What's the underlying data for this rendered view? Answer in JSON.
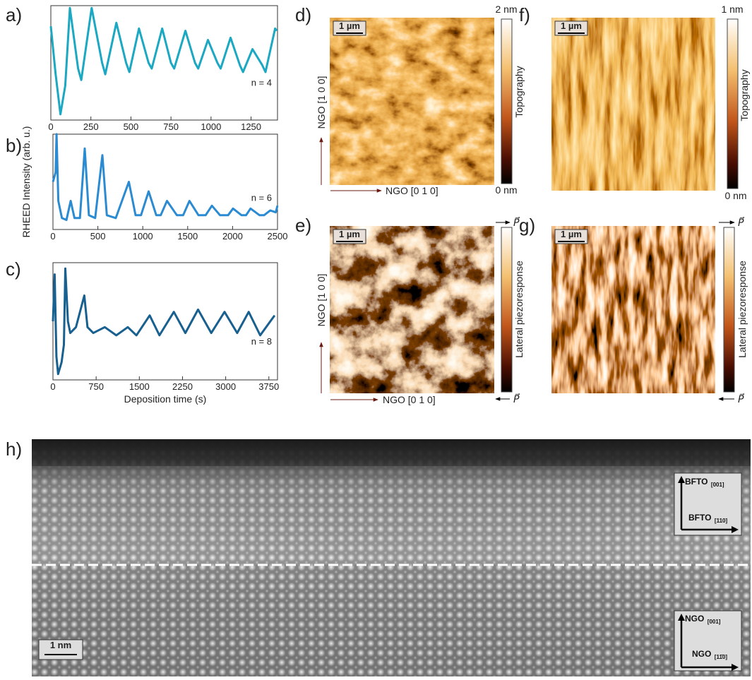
{
  "chart_data": [
    {
      "type": "line",
      "panel_label": "a)",
      "annotation": "n = 4",
      "x": [
        0,
        30,
        60,
        90,
        119,
        170,
        190,
        255,
        320,
        340,
        409,
        470,
        490,
        550,
        610,
        630,
        695,
        750,
        770,
        840,
        900,
        920,
        981,
        1040,
        1060,
        1122,
        1180,
        1200,
        1259,
        1320,
        1340,
        1400,
        1410
      ],
      "values": [
        0.82,
        0.4,
        0.05,
        0.3,
        0.98,
        0.45,
        0.35,
        0.98,
        0.5,
        0.4,
        0.85,
        0.5,
        0.42,
        0.8,
        0.5,
        0.45,
        0.8,
        0.5,
        0.45,
        0.78,
        0.5,
        0.45,
        0.7,
        0.5,
        0.45,
        0.72,
        0.48,
        0.42,
        0.62,
        0.48,
        0.42,
        0.8,
        0.78
      ],
      "color": "#1ba8c2",
      "xlim": [
        0,
        1415
      ],
      "ylim": [
        0,
        1
      ],
      "xticks": [
        0,
        250,
        500,
        750,
        1000,
        1250
      ]
    },
    {
      "type": "line",
      "panel_label": "b)",
      "annotation": "n = 6",
      "ylabel": "RHEED Intensity (arb. u.)",
      "x": [
        0,
        30,
        40,
        60,
        100,
        150,
        197,
        240,
        300,
        354,
        400,
        470,
        550,
        600,
        700,
        845,
        920,
        980,
        1065,
        1150,
        1200,
        1270,
        1380,
        1450,
        1520,
        1620,
        1700,
        1770,
        1860,
        1950,
        2005,
        2100,
        2150,
        2200,
        2300,
        2350,
        2420,
        2480,
        2500
      ],
      "values": [
        0.5,
        0.6,
        1.0,
        0.3,
        0.12,
        0.1,
        0.3,
        0.12,
        0.12,
        0.85,
        0.15,
        0.12,
        0.78,
        0.15,
        0.12,
        0.5,
        0.15,
        0.15,
        0.4,
        0.15,
        0.15,
        0.3,
        0.15,
        0.15,
        0.3,
        0.15,
        0.15,
        0.25,
        0.15,
        0.15,
        0.22,
        0.15,
        0.15,
        0.22,
        0.15,
        0.15,
        0.2,
        0.18,
        0.25
      ],
      "color": "#2b8bd2",
      "xlim": [
        0,
        2500
      ],
      "ylim": [
        0,
        1
      ],
      "xticks": [
        0,
        500,
        1000,
        1500,
        2000,
        2500
      ]
    },
    {
      "type": "line",
      "panel_label": "c)",
      "annotation": "n = 8",
      "xlabel": "Deposition time (s)",
      "x": [
        0,
        30,
        60,
        90,
        150,
        190,
        215,
        260,
        300,
        400,
        545,
        600,
        700,
        900,
        1100,
        1300,
        1450,
        1680,
        1850,
        2100,
        2300,
        2520,
        2750,
        2980,
        3200,
        3400,
        3600,
        3850
      ],
      "values": [
        0.5,
        0.9,
        0.2,
        0.05,
        0.15,
        0.3,
        0.95,
        0.5,
        0.4,
        0.45,
        0.72,
        0.45,
        0.4,
        0.45,
        0.38,
        0.45,
        0.38,
        0.55,
        0.38,
        0.58,
        0.4,
        0.6,
        0.4,
        0.58,
        0.4,
        0.58,
        0.38,
        0.55
      ],
      "color": "#17608f",
      "xlim": [
        0,
        3900
      ],
      "ylim": [
        0,
        1
      ],
      "xticks": [
        0,
        750,
        1500,
        2250,
        3000,
        3750
      ]
    }
  ],
  "images": [
    {
      "label": "d)",
      "scale_bar": "1 µm",
      "colorbar_top": "2 nm",
      "colorbar_bottom": "0 nm",
      "colorbar_label": "Topography",
      "y_axis_label": "NGO [1 0 0]",
      "x_axis_label": "NGO [0 1 0]"
    },
    {
      "label": "e)",
      "scale_bar": "1 µm",
      "colorbar_top": "P⃗",
      "colorbar_bottom": "P⃗",
      "colorbar_label": "Lateral piezoresponse",
      "y_axis_label": "NGO [1 0 0]",
      "x_axis_label": "NGO [0 1 0]"
    },
    {
      "label": "f)",
      "scale_bar": "1 µm",
      "colorbar_top": "1 nm",
      "colorbar_bottom": "0 nm",
      "colorbar_label": "Topography"
    },
    {
      "label": "g)",
      "scale_bar": "1 µm",
      "colorbar_top": "P⃗",
      "colorbar_bottom": "P⃗",
      "colorbar_label": "Lateral piezoresponse"
    }
  ],
  "stem": {
    "label": "h)",
    "scale_bar": "1 nm",
    "film_vertical": {
      "name": "BFTO",
      "index": "[001]"
    },
    "film_horizontal": {
      "name": "BFTO",
      "index": "[110]"
    },
    "substrate_vertical": {
      "name": "NGO",
      "index": "[001]"
    },
    "substrate_horizontal": {
      "name": "NGO",
      "index": "[11̄0]"
    }
  }
}
